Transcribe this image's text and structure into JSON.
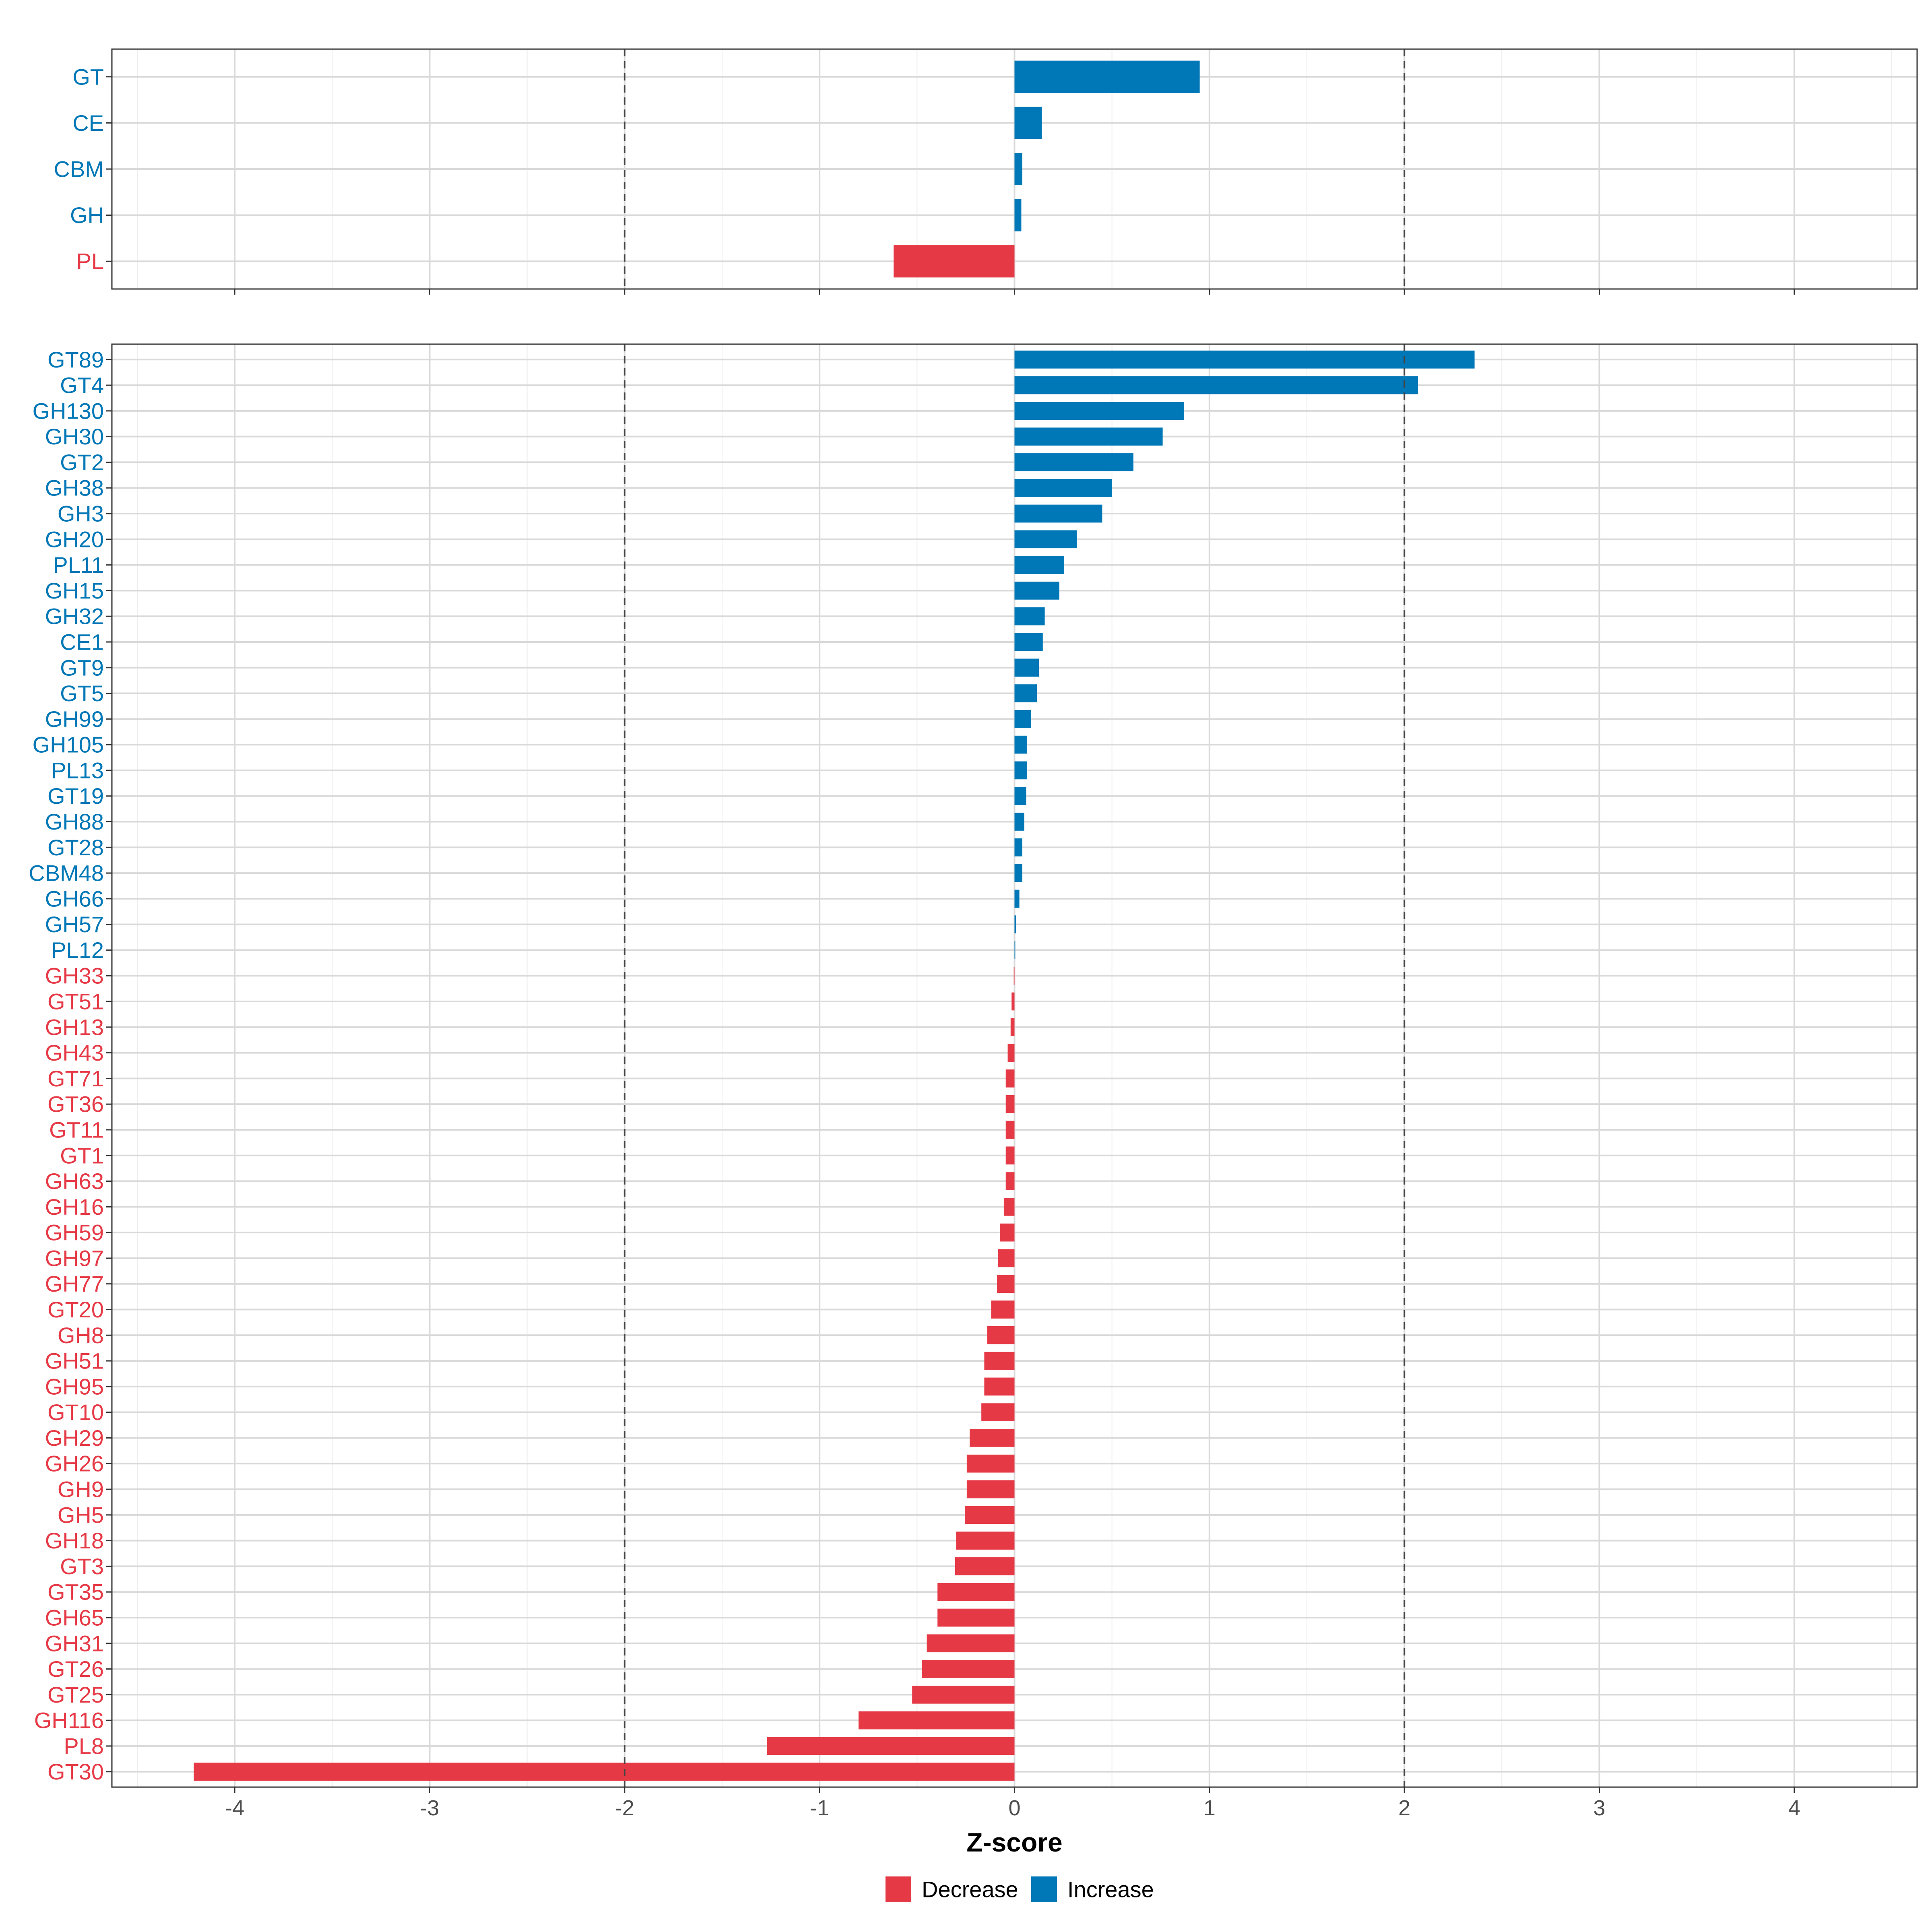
{
  "colors": {
    "decrease": "#e63946",
    "increase": "#0077b6"
  },
  "chart_data": [
    {
      "type": "bar",
      "orientation": "horizontal",
      "panel": "top",
      "categories": [
        "GT",
        "CE",
        "CBM",
        "GH",
        "PL"
      ],
      "values": [
        0.95,
        0.14,
        0.04,
        0.035,
        -0.62
      ],
      "xlim": [
        -4.63,
        4.63
      ],
      "ticks": [
        -4,
        -3,
        -2,
        -1,
        0,
        1,
        2,
        3,
        4
      ],
      "reference_lines": [
        -2,
        2
      ],
      "grid": true
    },
    {
      "type": "bar",
      "orientation": "horizontal",
      "panel": "bottom",
      "categories": [
        "GT89",
        "GT4",
        "GH130",
        "GH30",
        "GT2",
        "GH38",
        "GH3",
        "GH20",
        "PL11",
        "GH15",
        "GH32",
        "CE1",
        "GT9",
        "GT5",
        "GH99",
        "GH105",
        "PL13",
        "GT19",
        "GH88",
        "GT28",
        "CBM48",
        "GH66",
        "GH57",
        "PL12",
        "GH33",
        "GT51",
        "GH13",
        "GH43",
        "GT71",
        "GT36",
        "GT11",
        "GT1",
        "GH63",
        "GH16",
        "GH59",
        "GH97",
        "GH77",
        "GT20",
        "GH8",
        "GH51",
        "GH95",
        "GT10",
        "GH29",
        "GH26",
        "GH9",
        "GH5",
        "GH18",
        "GT3",
        "GT35",
        "GH65",
        "GH31",
        "GT26",
        "GT25",
        "GH116",
        "PL8",
        "GT30"
      ],
      "values": [
        2.36,
        2.07,
        0.87,
        0.76,
        0.61,
        0.5,
        0.45,
        0.32,
        0.255,
        0.23,
        0.155,
        0.145,
        0.125,
        0.115,
        0.085,
        0.065,
        0.065,
        0.06,
        0.05,
        0.04,
        0.04,
        0.025,
        0.008,
        0.004,
        -0.004,
        -0.015,
        -0.02,
        -0.035,
        -0.045,
        -0.045,
        -0.045,
        -0.045,
        -0.045,
        -0.055,
        -0.075,
        -0.085,
        -0.09,
        -0.12,
        -0.14,
        -0.155,
        -0.155,
        -0.17,
        -0.23,
        -0.245,
        -0.245,
        -0.255,
        -0.3,
        -0.305,
        -0.395,
        -0.395,
        -0.45,
        -0.475,
        -0.525,
        -0.8,
        -1.27,
        -4.21
      ],
      "xlim": [
        -4.63,
        4.63
      ],
      "ticks": [
        -4,
        -3,
        -2,
        -1,
        0,
        1,
        2,
        3,
        4
      ],
      "reference_lines": [
        -2,
        2
      ],
      "xlabel": "Z-score",
      "grid": true
    }
  ],
  "legend": {
    "position": "bottom",
    "items": [
      {
        "label": "Decrease",
        "key": "decrease"
      },
      {
        "label": "Increase",
        "key": "increase"
      }
    ]
  }
}
